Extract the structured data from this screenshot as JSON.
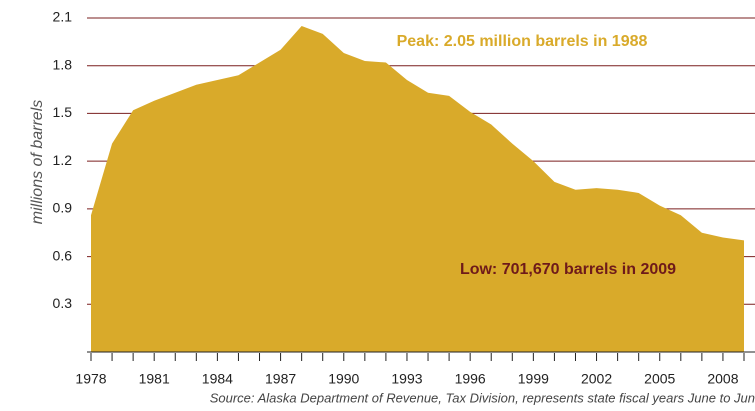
{
  "chart_data": {
    "type": "area",
    "ylabel": "millions of barrels",
    "x": [
      1978,
      1979,
      1980,
      1981,
      1982,
      1983,
      1984,
      1985,
      1986,
      1987,
      1988,
      1989,
      1990,
      1991,
      1992,
      1993,
      1994,
      1995,
      1996,
      1997,
      1998,
      1999,
      2000,
      2001,
      2002,
      2003,
      2004,
      2005,
      2006,
      2007,
      2008,
      2009
    ],
    "values": [
      0.86,
      1.31,
      1.52,
      1.58,
      1.63,
      1.68,
      1.71,
      1.74,
      1.82,
      1.9,
      2.05,
      2.0,
      1.88,
      1.83,
      1.82,
      1.71,
      1.63,
      1.61,
      1.51,
      1.43,
      1.31,
      1.2,
      1.07,
      1.02,
      1.03,
      1.02,
      1.0,
      0.92,
      0.86,
      0.75,
      0.72,
      0.70167
    ],
    "color": "#d9aa2a",
    "grid_color": "#7a1f1f",
    "xlim": [
      1978,
      2009
    ],
    "xticks": [
      1978,
      1981,
      1984,
      1987,
      1990,
      1993,
      1996,
      1999,
      2002,
      2005,
      2008
    ],
    "ylim": [
      0,
      2.1
    ],
    "yticks": [
      {
        "value": 0.3,
        "label": "0.3"
      },
      {
        "value": 0.6,
        "label": "0.6"
      },
      {
        "value": 0.9,
        "label": "0.9"
      },
      {
        "value": 1.2,
        "label": "1.2"
      },
      {
        "value": 1.5,
        "label": "1.5"
      },
      {
        "value": 1.8,
        "label": "1.8"
      },
      {
        "value": 2.1,
        "label": "2.1"
      }
    ],
    "grid": true,
    "annotations": [
      {
        "text": "Peak: 2.05 million barrels in 1988",
        "color": "#d9aa2a"
      },
      {
        "text": "Low: 701,670 barrels in 2009",
        "color": "#6e1a1a"
      }
    ],
    "source": "Source: Alaska Department of Revenue, Tax Division, represents state fiscal years June to Jun"
  }
}
